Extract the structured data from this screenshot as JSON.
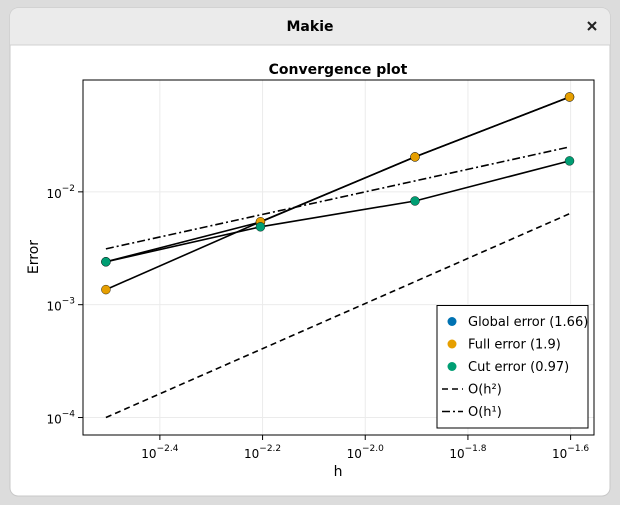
{
  "window": {
    "title": "Makie"
  },
  "chart_data": {
    "type": "line",
    "title": "Convergence plot",
    "xlabel": "h",
    "ylabel": "Error",
    "x": [
      0.003125,
      0.00625,
      0.0125,
      0.025
    ],
    "line_color": "#000000",
    "series": [
      {
        "name": "Global error (1.66)",
        "color": "#0072b2",
        "marker": true,
        "linestyle": "solid",
        "values": [
          0.0024,
          0.0054,
          0.0204,
          0.0693
        ]
      },
      {
        "name": "Full error (1.9)",
        "color": "#e69f00",
        "marker": true,
        "linestyle": "solid",
        "values": [
          0.00136,
          0.00543,
          0.0204,
          0.0693
        ]
      },
      {
        "name": "Cut error (0.97)",
        "color": "#009e73",
        "marker": true,
        "linestyle": "solid",
        "values": [
          0.0024,
          0.0049,
          0.0083,
          0.0188
        ]
      },
      {
        "name": "O(h²)",
        "color": "#000000",
        "marker": false,
        "linestyle": "dash",
        "values": [
          0.0001,
          0.0004,
          0.0016,
          0.0064
        ]
      },
      {
        "name": "O(h¹)",
        "color": "#000000",
        "marker": false,
        "linestyle": "dashdot",
        "values": [
          0.003125,
          0.00625,
          0.0125,
          0.025
        ]
      }
    ],
    "xscale": "log",
    "yscale": "log",
    "xlim": [
      0.00282,
      0.0279
    ],
    "ylim": [
      7e-05,
      0.098
    ],
    "xticks": [
      {
        "value": 0.003981,
        "label": "10",
        "exp": "−2.4"
      },
      {
        "value": 0.00631,
        "label": "10",
        "exp": "−2.2"
      },
      {
        "value": 0.01,
        "label": "10",
        "exp": "−2.0"
      },
      {
        "value": 0.01585,
        "label": "10",
        "exp": "−1.8"
      },
      {
        "value": 0.02512,
        "label": "10",
        "exp": "−1.6"
      }
    ],
    "yticks": [
      {
        "value": 0.0001,
        "label": "10",
        "exp": "−4"
      },
      {
        "value": 0.001,
        "label": "10",
        "exp": "−3"
      },
      {
        "value": 0.01,
        "label": "10",
        "exp": "−2"
      }
    ],
    "grid": true,
    "legend": "bottom-right"
  }
}
